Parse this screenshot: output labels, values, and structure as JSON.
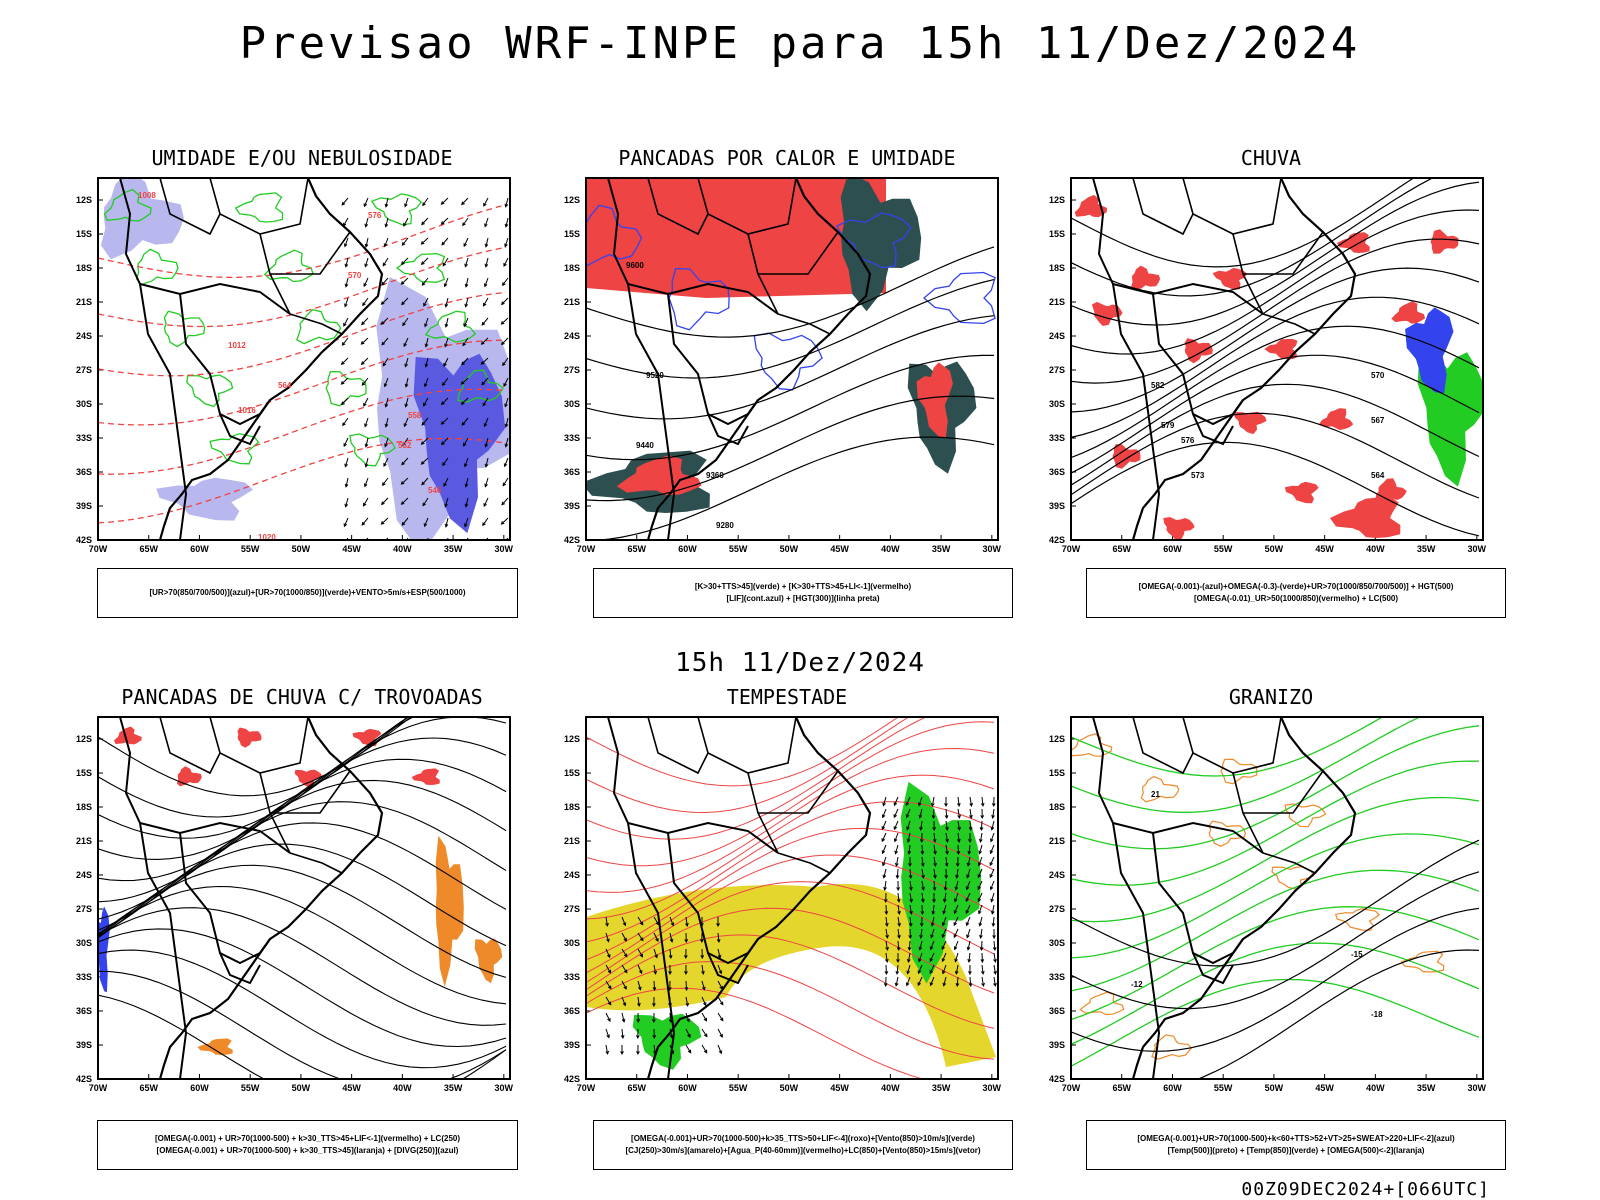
{
  "header": {
    "title": "Previsao WRF-INPE  para 15h 11/Dez/2024",
    "mid_title": "15h 11/Dez/2024",
    "run": "00Z09DEC2024+[066UTC]"
  },
  "axes": {
    "lat_ticks": [
      "12S",
      "15S",
      "18S",
      "21S",
      "24S",
      "27S",
      "30S",
      "33S",
      "36S",
      "39S",
      "42S"
    ],
    "lon_ticks": [
      "70W",
      "65W",
      "60W",
      "55W",
      "50W",
      "45W",
      "40W",
      "35W",
      "30W"
    ]
  },
  "colors": {
    "humid_fill": "#b8b8ee",
    "humid_fill_dark": "#5a5ae0",
    "green": "#22cc22",
    "red": "#ee4444",
    "dark_teal": "#2e4f4f",
    "yellow": "#e5d62e",
    "orange": "#ee8a2a",
    "blue": "#3344ee"
  },
  "panels": [
    {
      "id": "umidade",
      "title": "UMIDADE E/OU NEBULOSIDADE",
      "caption": [
        "[UR>70(850/700/500)](azul)+[UR>70(1000/850)](verde)+VENTO>5m/s+ESP(500/1000)"
      ],
      "labels": [
        "1008",
        "1012",
        "1016",
        "1020",
        "570",
        "564",
        "558",
        "552",
        "546",
        "576"
      ]
    },
    {
      "id": "pancadas-calor",
      "title": "PANCADAS POR CALOR E UMIDADE",
      "caption": [
        "[K>30+TTS>45](verde) + [K>30+TTS>45+LI<-1](vermelho)",
        "[LIF](cont.azul) + [HGT(300)](linha preta)"
      ],
      "labels": [
        "9600",
        "9520",
        "9440",
        "9360",
        "9280"
      ]
    },
    {
      "id": "chuva",
      "title": "CHUVA",
      "caption": [
        "[OMEGA(-0.001)-(azul)+OMEGA(-0.3)-(verde)+UR>70(1000/850/700/500)] + HGT(500)",
        "[OMEGA(-0.01)_UR>50(1000/850)(vermelho) + LC(500)"
      ],
      "labels": [
        "582",
        "579",
        "576",
        "573",
        "570",
        "567",
        "564"
      ]
    },
    {
      "id": "trovoadas",
      "title": "PANCADAS DE CHUVA C/ TROVOADAS",
      "caption": [
        "[OMEGA(-0.001) + UR>70(1000-500) + k>30_TTS>45+LIF<-1](vermelho) + LC(250)",
        "[OMEGA(-0.001) + UR>70(1000-500) + k>30_TTS>45](laranja) + [DIVG(250)](azul)"
      ],
      "labels": []
    },
    {
      "id": "tempestade",
      "title": "TEMPESTADE",
      "caption": [
        "[OMEGA(-0.001)+UR>70(1000-500)+k>35_TTS>50+LIF<-4](roxo)+[Vento(850)>10m/s](verde)",
        "[CJ(250)>30m/s](amarelo)+[Agua_P(40-60mm)](vermelho)+LC(850)+[Vento(850)>15m/s](vetor)"
      ],
      "labels": []
    },
    {
      "id": "granizo",
      "title": "GRANIZO",
      "caption": [
        "[OMEGA(-0.001)+UR>70(1000-500)+k<60+TTS>52+VT>25+SWEAT>220+LIF<-2](azul)",
        "[Temp(500)](preto) + [Temp(850)](verde) + [OMEGA(500)<-2](laranja)"
      ],
      "labels": [
        "-12",
        "-15",
        "-18",
        "21"
      ]
    }
  ]
}
